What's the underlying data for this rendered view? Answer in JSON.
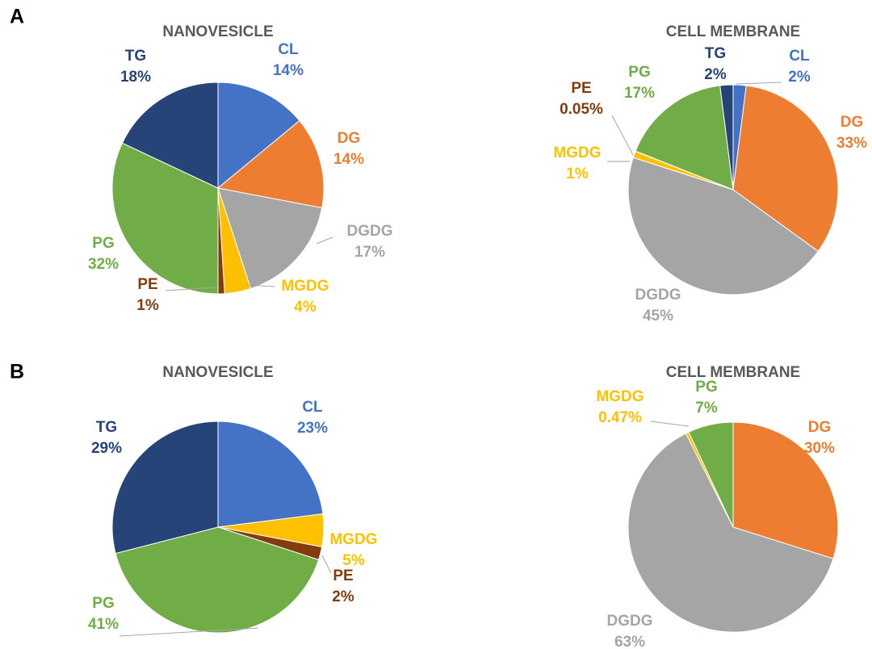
{
  "panel_labels": [
    "A",
    "B"
  ],
  "chart_data": [
    {
      "type": "pie",
      "title": "NANOVESICLE",
      "categories": [
        "CL",
        "DG",
        "DGDG",
        "MGDG",
        "PE",
        "PG",
        "TG"
      ],
      "values": [
        14,
        14,
        17,
        4,
        1,
        32,
        18
      ],
      "value_labels": [
        "14%",
        "14%",
        "17%",
        "4%",
        "1%",
        "32%",
        "18%"
      ],
      "colors": [
        "#4472c4",
        "#ed7d31",
        "#a5a5a5",
        "#ffc000",
        "#843c0c",
        "#70ad47",
        "#264478"
      ]
    },
    {
      "type": "pie",
      "title": "CELL MEMBRANE",
      "categories": [
        "CL",
        "DG",
        "DGDG",
        "MGDG",
        "PE",
        "PG",
        "TG"
      ],
      "values": [
        2,
        33,
        45,
        1,
        0.05,
        17,
        2
      ],
      "value_labels": [
        "2%",
        "33%",
        "45%",
        "1%",
        "0.05%",
        "17%",
        "2%"
      ],
      "colors": [
        "#4472c4",
        "#ed7d31",
        "#a5a5a5",
        "#ffc000",
        "#843c0c",
        "#70ad47",
        "#264478"
      ]
    },
    {
      "type": "pie",
      "title": "NANOVESICLE",
      "categories": [
        "CL",
        "MGDG",
        "PE",
        "PG",
        "TG"
      ],
      "values": [
        23,
        5,
        2,
        41,
        29
      ],
      "value_labels": [
        "23%",
        "5%",
        "2%",
        "41%",
        "29%"
      ],
      "colors": [
        "#4472c4",
        "#ffc000",
        "#843c0c",
        "#70ad47",
        "#264478"
      ]
    },
    {
      "type": "pie",
      "title": "CELL MEMBRANE",
      "categories": [
        "DG",
        "DGDG",
        "MGDG",
        "PG"
      ],
      "values": [
        30,
        63,
        0.47,
        7
      ],
      "value_labels": [
        "30%",
        "63%",
        "0.47%",
        "7%"
      ],
      "colors": [
        "#ed7d31",
        "#a5a5a5",
        "#ffc000",
        "#70ad47"
      ]
    }
  ]
}
